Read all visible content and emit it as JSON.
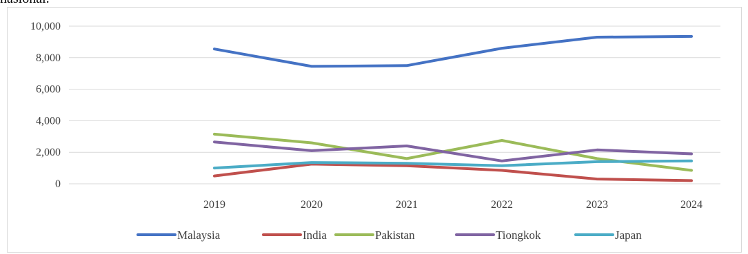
{
  "page_fragment": "nasional.",
  "chart_data": {
    "type": "line",
    "title": "",
    "xlabel": "",
    "ylabel": "",
    "categories": [
      "2019",
      "2020",
      "2021",
      "2022",
      "2023",
      "2024"
    ],
    "ylim": [
      0,
      10000
    ],
    "yticks": [
      0,
      2000,
      4000,
      6000,
      8000,
      10000
    ],
    "ytick_labels": [
      "0",
      "2,000",
      "4,000",
      "6,000",
      "8,000",
      "10,000"
    ],
    "grid": true,
    "legend_position": "bottom",
    "series": [
      {
        "name": "Malaysia",
        "color": "#4472c4",
        "values": [
          8550,
          7450,
          7500,
          8600,
          9300,
          9350
        ]
      },
      {
        "name": "India",
        "color": "#c0504d",
        "values": [
          500,
          1250,
          1150,
          850,
          300,
          200
        ]
      },
      {
        "name": "Pakistan",
        "color": "#9bbb59",
        "values": [
          3150,
          2600,
          1600,
          2750,
          1600,
          850
        ]
      },
      {
        "name": "Tiongkok",
        "color": "#8064a2",
        "values": [
          2650,
          2100,
          2400,
          1450,
          2150,
          1900
        ]
      },
      {
        "name": "Japan",
        "color": "#4bacc6",
        "values": [
          1000,
          1350,
          1300,
          1150,
          1400,
          1450
        ]
      }
    ]
  }
}
